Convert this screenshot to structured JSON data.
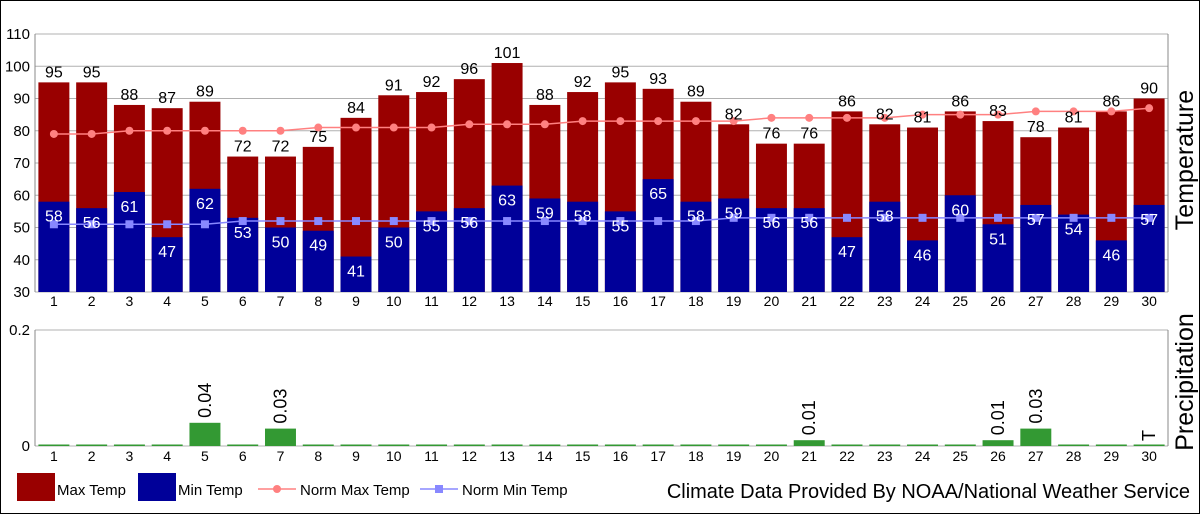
{
  "chart_data": [
    {
      "type": "bar",
      "ylabel": "Temperature",
      "ylim": [
        30,
        110
      ],
      "yticks": [
        30,
        40,
        50,
        60,
        70,
        80,
        90,
        100,
        110
      ],
      "grid": true,
      "categories": [
        "1",
        "2",
        "3",
        "4",
        "5",
        "6",
        "7",
        "8",
        "9",
        "10",
        "11",
        "12",
        "13",
        "14",
        "15",
        "16",
        "17",
        "18",
        "19",
        "20",
        "21",
        "22",
        "23",
        "24",
        "25",
        "26",
        "27",
        "28",
        "29",
        "30"
      ],
      "series": [
        {
          "name": "Max Temp",
          "kind": "bar",
          "color": "#990000",
          "values": [
            95,
            95,
            88,
            87,
            89,
            72,
            72,
            75,
            84,
            91,
            92,
            96,
            101,
            88,
            92,
            95,
            93,
            89,
            82,
            76,
            76,
            86,
            82,
            81,
            86,
            83,
            78,
            81,
            86,
            90
          ]
        },
        {
          "name": "Min Temp",
          "kind": "bar",
          "color": "#000099",
          "values": [
            58,
            56,
            61,
            47,
            62,
            53,
            50,
            49,
            41,
            50,
            55,
            56,
            63,
            59,
            58,
            55,
            65,
            58,
            59,
            56,
            56,
            47,
            58,
            46,
            60,
            51,
            57,
            54,
            46,
            57
          ]
        },
        {
          "name": "Norm Max Temp",
          "kind": "line",
          "color": "#ff8080",
          "values": [
            79,
            79,
            80,
            80,
            80,
            80,
            80,
            81,
            81,
            81,
            81,
            82,
            82,
            82,
            83,
            83,
            83,
            83,
            83,
            84,
            84,
            84,
            84,
            85,
            85,
            85,
            86,
            86,
            86,
            87
          ]
        },
        {
          "name": "Norm Min Temp",
          "kind": "line",
          "color": "#8888ff",
          "values": [
            51,
            51,
            51,
            51,
            51,
            52,
            52,
            52,
            52,
            52,
            52,
            52,
            52,
            52,
            52,
            52,
            52,
            52,
            53,
            53,
            53,
            53,
            53,
            53,
            53,
            53,
            53,
            53,
            53,
            53
          ]
        }
      ]
    },
    {
      "type": "bar",
      "ylabel": "Precipitation",
      "ylim": [
        0,
        0.2
      ],
      "yticks": [
        "0",
        "0.2"
      ],
      "categories": [
        "1",
        "2",
        "3",
        "4",
        "5",
        "6",
        "7",
        "8",
        "9",
        "10",
        "11",
        "12",
        "13",
        "14",
        "15",
        "16",
        "17",
        "18",
        "19",
        "20",
        "21",
        "22",
        "23",
        "24",
        "25",
        "26",
        "27",
        "28",
        "29",
        "30"
      ],
      "series": [
        {
          "name": "Precipitation",
          "color": "#339933",
          "values": [
            0,
            0,
            0,
            0,
            0.04,
            0,
            0.03,
            0,
            0,
            0,
            0,
            0,
            0,
            0,
            0,
            0,
            0,
            0,
            0,
            0,
            0.01,
            0,
            0,
            0,
            0,
            0.01,
            0.03,
            0,
            0,
            0
          ]
        }
      ],
      "labels": [
        {
          "day": "5",
          "text": "0.04"
        },
        {
          "day": "7",
          "text": "0.03"
        },
        {
          "day": "21",
          "text": "0.01"
        },
        {
          "day": "26",
          "text": "0.01"
        },
        {
          "day": "27",
          "text": "0.03"
        },
        {
          "day": "30",
          "text": "T"
        }
      ]
    }
  ],
  "legend": [
    {
      "label": "Max Temp",
      "kind": "box",
      "color": "#990000"
    },
    {
      "label": "Min Temp",
      "kind": "box",
      "color": "#000099"
    },
    {
      "label": "Norm Max Temp",
      "kind": "line",
      "color": "#ff8080"
    },
    {
      "label": "Norm Min Temp",
      "kind": "line",
      "color": "#8888ff"
    }
  ],
  "credit": "Climate Data Provided By NOAA/National Weather Service"
}
